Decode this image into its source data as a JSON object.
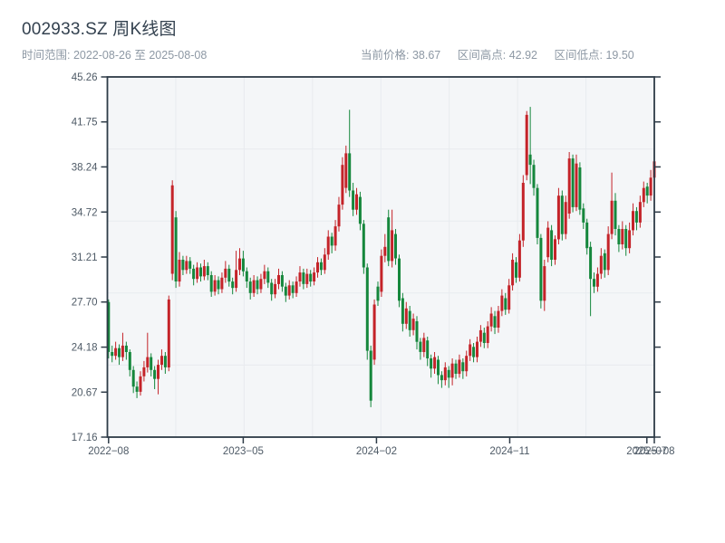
{
  "header": {
    "title": "002933.SZ 周K线图",
    "time_range": "时间范围: 2022-08-26 至 2025-08-08",
    "stats": [
      {
        "label": "当前价格:",
        "value": "38.67"
      },
      {
        "label": "区间高点:",
        "value": "42.92"
      },
      {
        "label": "区间低点:",
        "value": "19.50"
      }
    ]
  },
  "chart_data": {
    "type": "candlestick",
    "title": "002933.SZ 周K线图",
    "period": "weekly",
    "legend_position": "none",
    "grid": "on",
    "grid_divisions": {
      "horizontal": 5,
      "vertical": 8
    },
    "y_axis": {
      "min": 17.16,
      "max": 45.26,
      "tick_labels": [
        "45.26",
        "41.75",
        "38.24",
        "34.72",
        "31.21",
        "27.70",
        "24.18",
        "20.67",
        "17.16"
      ]
    },
    "x_axis": {
      "tick_labels": [
        "2022−08",
        "2023−05",
        "2024−02",
        "2024−11",
        "2025−07",
        "2025−08"
      ],
      "tick_weeks": [
        0,
        38,
        75.6,
        113.2,
        151.9,
        154
      ]
    },
    "colors": {
      "up": "#c42329",
      "down": "#15873c",
      "grid": "#e8ebef",
      "spine": "#2e3b47",
      "plot_bg": "#f4f6f8",
      "axis_text": "#4e5a66"
    },
    "current_price": 38.67,
    "range_high": 42.92,
    "range_low": 19.5,
    "candles_ohlc": [
      [
        27.7,
        27.9,
        23.3,
        23.8
      ],
      [
        23.8,
        24.3,
        23.0,
        23.5
      ],
      [
        23.5,
        24.6,
        23.2,
        24.1
      ],
      [
        24.1,
        24.4,
        22.8,
        23.4
      ],
      [
        23.4,
        25.3,
        23.1,
        24.3
      ],
      [
        24.3,
        24.6,
        23.2,
        23.8
      ],
      [
        23.8,
        24.0,
        21.9,
        22.4
      ],
      [
        22.4,
        22.7,
        20.6,
        21.1
      ],
      [
        21.1,
        21.5,
        20.2,
        20.7
      ],
      [
        20.7,
        22.3,
        20.4,
        21.9
      ],
      [
        21.9,
        23.1,
        21.5,
        22.6
      ],
      [
        22.6,
        25.3,
        22.2,
        23.4
      ],
      [
        23.4,
        23.7,
        21.9,
        22.4
      ],
      [
        22.4,
        22.7,
        20.9,
        21.7
      ],
      [
        21.7,
        23.2,
        20.5,
        22.8
      ],
      [
        22.8,
        24.0,
        22.4,
        23.5
      ],
      [
        23.5,
        23.8,
        22.1,
        22.6
      ],
      [
        22.6,
        28.2,
        22.3,
        27.9
      ],
      [
        29.9,
        37.2,
        29.4,
        36.8
      ],
      [
        34.3,
        34.8,
        28.8,
        29.3
      ],
      [
        29.3,
        31.6,
        28.9,
        31.0
      ],
      [
        31.0,
        31.3,
        29.8,
        30.2
      ],
      [
        30.2,
        31.3,
        29.9,
        30.9
      ],
      [
        30.9,
        31.2,
        29.9,
        30.3
      ],
      [
        30.3,
        30.6,
        29.0,
        29.5
      ],
      [
        29.5,
        30.8,
        29.2,
        30.4
      ],
      [
        30.4,
        30.7,
        29.3,
        29.7
      ],
      [
        29.7,
        31.0,
        29.4,
        30.5
      ],
      [
        30.5,
        30.8,
        29.4,
        29.8
      ],
      [
        29.8,
        30.1,
        28.1,
        28.5
      ],
      [
        28.5,
        29.8,
        28.2,
        29.4
      ],
      [
        29.4,
        29.7,
        28.3,
        28.7
      ],
      [
        28.7,
        30.0,
        28.4,
        29.6
      ],
      [
        29.6,
        30.9,
        29.2,
        30.3
      ],
      [
        30.3,
        30.6,
        28.9,
        29.3
      ],
      [
        29.3,
        29.6,
        28.3,
        28.8
      ],
      [
        28.8,
        31.7,
        28.5,
        30.2
      ],
      [
        30.2,
        31.9,
        29.8,
        31.1
      ],
      [
        31.1,
        31.7,
        29.7,
        30.1
      ],
      [
        30.1,
        30.4,
        28.8,
        29.3
      ],
      [
        29.3,
        29.6,
        27.9,
        28.4
      ],
      [
        28.4,
        29.8,
        28.1,
        29.4
      ],
      [
        29.4,
        29.7,
        28.3,
        28.7
      ],
      [
        28.7,
        29.9,
        28.4,
        29.5
      ],
      [
        29.5,
        30.6,
        29.1,
        30.1
      ],
      [
        30.1,
        30.4,
        28.8,
        29.2
      ],
      [
        29.2,
        29.5,
        27.8,
        28.3
      ],
      [
        28.3,
        29.5,
        28.0,
        29.1
      ],
      [
        29.1,
        30.3,
        28.7,
        29.8
      ],
      [
        29.8,
        30.1,
        28.5,
        28.9
      ],
      [
        28.9,
        29.2,
        27.7,
        28.2
      ],
      [
        28.2,
        29.4,
        27.9,
        29.0
      ],
      [
        29.0,
        29.3,
        28.0,
        28.4
      ],
      [
        28.4,
        29.7,
        28.1,
        29.3
      ],
      [
        29.3,
        30.5,
        28.9,
        30.0
      ],
      [
        30.0,
        30.3,
        28.7,
        29.1
      ],
      [
        29.1,
        30.3,
        28.8,
        29.9
      ],
      [
        29.9,
        30.2,
        28.9,
        29.3
      ],
      [
        29.3,
        30.4,
        29.0,
        30.0
      ],
      [
        30.0,
        31.2,
        29.6,
        30.8
      ],
      [
        30.8,
        31.1,
        29.8,
        30.2
      ],
      [
        30.2,
        31.9,
        29.9,
        31.4
      ],
      [
        31.4,
        33.3,
        31.0,
        32.8
      ],
      [
        32.8,
        33.1,
        31.5,
        32.1
      ],
      [
        32.1,
        34.1,
        31.7,
        33.6
      ],
      [
        33.6,
        35.9,
        33.2,
        35.3
      ],
      [
        35.3,
        39.0,
        34.9,
        38.4
      ],
      [
        36.6,
        39.9,
        36.2,
        39.3
      ],
      [
        39.3,
        42.7,
        35.9,
        36.4
      ],
      [
        36.4,
        37.0,
        34.4,
        34.9
      ],
      [
        34.9,
        36.6,
        34.5,
        36.1
      ],
      [
        35.9,
        36.3,
        33.3,
        33.8
      ],
      [
        33.8,
        34.1,
        29.9,
        30.4
      ],
      [
        30.4,
        30.7,
        23.2,
        23.9
      ],
      [
        23.9,
        24.3,
        19.5,
        20.0
      ],
      [
        23.2,
        27.9,
        22.8,
        27.5
      ],
      [
        28.9,
        29.3,
        27.4,
        27.8
      ],
      [
        28.5,
        31.8,
        28.1,
        31.3
      ],
      [
        31.3,
        33.0,
        30.8,
        32.0
      ],
      [
        34.3,
        34.9,
        30.5,
        30.9
      ],
      [
        30.9,
        34.9,
        30.4,
        33.3
      ],
      [
        33.0,
        33.4,
        30.6,
        31.1
      ],
      [
        31.1,
        31.4,
        27.3,
        27.8
      ],
      [
        28.0,
        28.4,
        25.4,
        26.0
      ],
      [
        26.0,
        27.7,
        25.6,
        27.2
      ],
      [
        27.0,
        27.4,
        25.0,
        25.5
      ],
      [
        25.5,
        26.8,
        25.1,
        26.4
      ],
      [
        26.2,
        26.6,
        24.0,
        24.6
      ],
      [
        24.6,
        24.9,
        23.2,
        23.8
      ],
      [
        23.8,
        25.3,
        23.4,
        24.9
      ],
      [
        24.7,
        25.0,
        22.7,
        23.3
      ],
      [
        23.3,
        23.6,
        21.8,
        22.5
      ],
      [
        22.5,
        23.8,
        22.1,
        23.4
      ],
      [
        23.2,
        23.5,
        21.3,
        22.0
      ],
      [
        22.0,
        22.3,
        21.0,
        21.6
      ],
      [
        21.6,
        23.0,
        21.2,
        22.6
      ],
      [
        22.4,
        22.7,
        21.0,
        21.8
      ],
      [
        21.8,
        23.3,
        21.2,
        22.9
      ],
      [
        22.9,
        23.2,
        21.7,
        22.1
      ],
      [
        22.1,
        23.6,
        21.8,
        23.2
      ],
      [
        23.0,
        23.3,
        21.7,
        22.3
      ],
      [
        22.3,
        23.9,
        21.9,
        23.5
      ],
      [
        23.5,
        24.8,
        23.1,
        24.4
      ],
      [
        24.2,
        24.5,
        23.0,
        23.4
      ],
      [
        23.4,
        25.0,
        23.0,
        24.6
      ],
      [
        24.6,
        25.9,
        24.2,
        25.5
      ],
      [
        25.3,
        25.7,
        24.1,
        24.5
      ],
      [
        24.5,
        26.2,
        24.1,
        25.8
      ],
      [
        25.8,
        27.3,
        25.4,
        26.8
      ],
      [
        26.6,
        27.0,
        25.2,
        25.7
      ],
      [
        25.7,
        27.4,
        25.3,
        27.0
      ],
      [
        27.0,
        28.7,
        26.6,
        28.2
      ],
      [
        28.0,
        28.4,
        26.7,
        27.1
      ],
      [
        27.1,
        29.5,
        26.8,
        29.0
      ],
      [
        29.0,
        31.5,
        28.6,
        31.0
      ],
      [
        30.8,
        31.2,
        29.2,
        29.6
      ],
      [
        29.6,
        33.0,
        29.3,
        32.5
      ],
      [
        32.5,
        37.6,
        32.0,
        37.0
      ],
      [
        37.6,
        42.6,
        37.2,
        42.3
      ],
      [
        39.2,
        42.92,
        36.9,
        38.4
      ],
      [
        38.4,
        38.8,
        36.0,
        36.6
      ],
      [
        36.6,
        36.9,
        32.2,
        32.7
      ],
      [
        32.7,
        33.0,
        27.2,
        27.8
      ],
      [
        27.8,
        31.0,
        27.0,
        30.5
      ],
      [
        31.2,
        34.0,
        30.8,
        33.5
      ],
      [
        33.3,
        33.7,
        30.5,
        31.0
      ],
      [
        31.0,
        32.9,
        30.6,
        32.6
      ],
      [
        32.6,
        36.6,
        32.2,
        36.0
      ],
      [
        36.0,
        36.4,
        32.5,
        33.0
      ],
      [
        33.0,
        36.0,
        32.6,
        35.5
      ],
      [
        34.6,
        39.4,
        34.2,
        38.9
      ],
      [
        38.9,
        39.2,
        34.7,
        35.1
      ],
      [
        35.1,
        39.2,
        34.8,
        38.5
      ],
      [
        38.2,
        38.6,
        34.5,
        34.9
      ],
      [
        35.0,
        35.4,
        33.4,
        33.9
      ],
      [
        33.9,
        34.2,
        31.4,
        31.9
      ],
      [
        32.0,
        32.4,
        26.6,
        29.5
      ],
      [
        29.5,
        30.0,
        28.4,
        28.9
      ],
      [
        28.9,
        30.4,
        28.5,
        29.9
      ],
      [
        29.9,
        31.9,
        29.5,
        31.3
      ],
      [
        31.5,
        31.8,
        29.6,
        30.2
      ],
      [
        30.2,
        33.6,
        29.8,
        33.0
      ],
      [
        33.0,
        37.8,
        32.6,
        35.6
      ],
      [
        35.6,
        36.2,
        32.9,
        33.4
      ],
      [
        33.4,
        33.7,
        31.6,
        32.2
      ],
      [
        32.2,
        34.0,
        31.8,
        33.4
      ],
      [
        33.4,
        33.7,
        31.3,
        31.9
      ],
      [
        31.9,
        33.9,
        31.5,
        33.3
      ],
      [
        33.3,
        35.4,
        32.9,
        34.8
      ],
      [
        34.8,
        35.1,
        33.3,
        33.9
      ],
      [
        33.9,
        36.0,
        33.5,
        35.5
      ],
      [
        35.5,
        37.1,
        35.1,
        36.6
      ],
      [
        36.7,
        37.0,
        35.4,
        36.0
      ],
      [
        36.0,
        38.0,
        35.6,
        37.4
      ],
      [
        37.4,
        39.85,
        36.9,
        38.67
      ]
    ]
  }
}
